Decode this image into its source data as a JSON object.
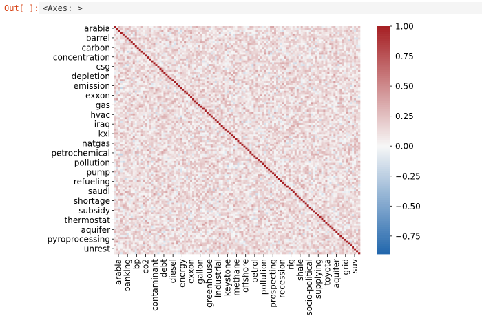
{
  "output": {
    "prompt": "Out[ ]:",
    "text": "<Axes: >"
  },
  "chart_data": {
    "type": "heatmap",
    "title": "",
    "xlabel": "",
    "ylabel": "",
    "y_tick_labels": [
      "arabia",
      "barrel",
      "carbon",
      "concentration",
      "csg",
      "depletion",
      "emission",
      "exxon",
      "gas",
      "hvac",
      "iraq",
      "kxl",
      "natgas",
      "petrochemical",
      "pollution",
      "pump",
      "refueling",
      "saudi",
      "shortage",
      "subsidy",
      "thermostat",
      "aquifer",
      "pyroprocessing",
      "unrest"
    ],
    "x_tick_labels": [
      "arabia",
      "banking",
      "bp",
      "co2",
      "contaminant",
      "debt",
      "diesel",
      "energy",
      "exxon",
      "gallon",
      "greenhouse",
      "industrial",
      "keystone",
      "methane",
      "offshore",
      "petrol",
      "pollution",
      "prospecting",
      "recession",
      "rig",
      "shale",
      "socio-political",
      "supplying",
      "toyota",
      "aquifer",
      "grid",
      "suv"
    ],
    "diagonal_value": 1.0,
    "off_diagonal_range": [
      -0.3,
      0.45
    ],
    "colormap": "vlag (blue-white-red)",
    "colors": {
      "low": "#2166ac",
      "mid": "#f7f7f7",
      "high": "#a51e22"
    },
    "vmin": -0.9,
    "vmax": 1.0,
    "colorbar": {
      "ticks": [
        1.0,
        0.75,
        0.5,
        0.25,
        0.0,
        -0.25,
        -0.5,
        -0.75
      ],
      "tick_labels": [
        "1.00",
        "0.75",
        "0.50",
        "0.25",
        "0.00",
        "−0.25",
        "−0.50",
        "−0.75"
      ]
    },
    "grid": false,
    "legend": "colorbar-right"
  }
}
